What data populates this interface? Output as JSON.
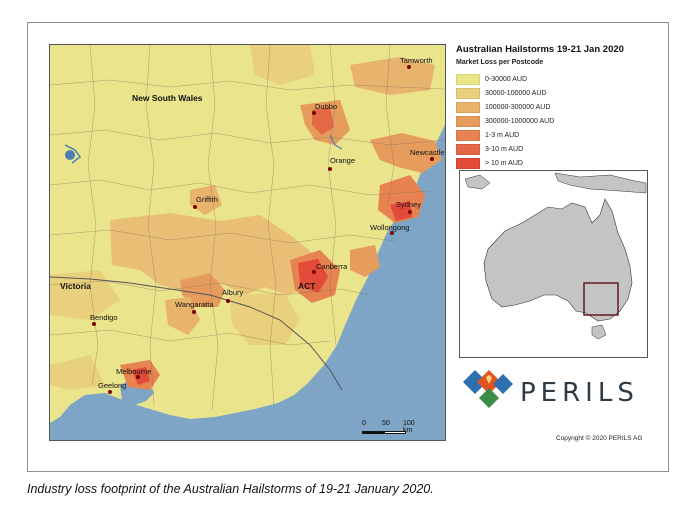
{
  "map": {
    "regions": {
      "nsw": "New South Wales",
      "victoria": "Victoria",
      "act": "ACT"
    },
    "cities": [
      {
        "name": "Tamworth"
      },
      {
        "name": "Dubbo"
      },
      {
        "name": "Orange"
      },
      {
        "name": "Newcastle"
      },
      {
        "name": "Griffith"
      },
      {
        "name": "Sydney"
      },
      {
        "name": "Wollongong"
      },
      {
        "name": "Canberra"
      },
      {
        "name": "Albury"
      },
      {
        "name": "Wangaratta"
      },
      {
        "name": "Bendigo"
      },
      {
        "name": "Melbourne"
      },
      {
        "name": "Geelong"
      }
    ],
    "scale": {
      "ticks": [
        "0",
        "50",
        "100 km"
      ]
    }
  },
  "legend": {
    "title": "Australian Hailstorms 19-21 Jan 2020",
    "subtitle": "Market Loss per Postcode",
    "items": [
      {
        "label": "0-30000 AUD",
        "color": "#ebe58a"
      },
      {
        "label": "30000-100000 AUD",
        "color": "#e9d07c"
      },
      {
        "label": "100000-300000 AUD",
        "color": "#e7b36d"
      },
      {
        "label": "300000-1000000 AUD",
        "color": "#e69c5d"
      },
      {
        "label": "1-3 m AUD",
        "color": "#e68350"
      },
      {
        "label": "3-10 m AUD",
        "color": "#e46746"
      },
      {
        "label": "> 10 m AUD",
        "color": "#e24a3a"
      }
    ]
  },
  "brand": {
    "name": "PERILS",
    "copyright": "Copyright © 2020 PERILS AG"
  },
  "caption": "Industry loss footprint of the Australian Hailstorms of 19-21 January 2020.",
  "colors": {
    "sea": "#7ea5c6",
    "land_base": "#eae48c",
    "border": "#7d6a55"
  }
}
